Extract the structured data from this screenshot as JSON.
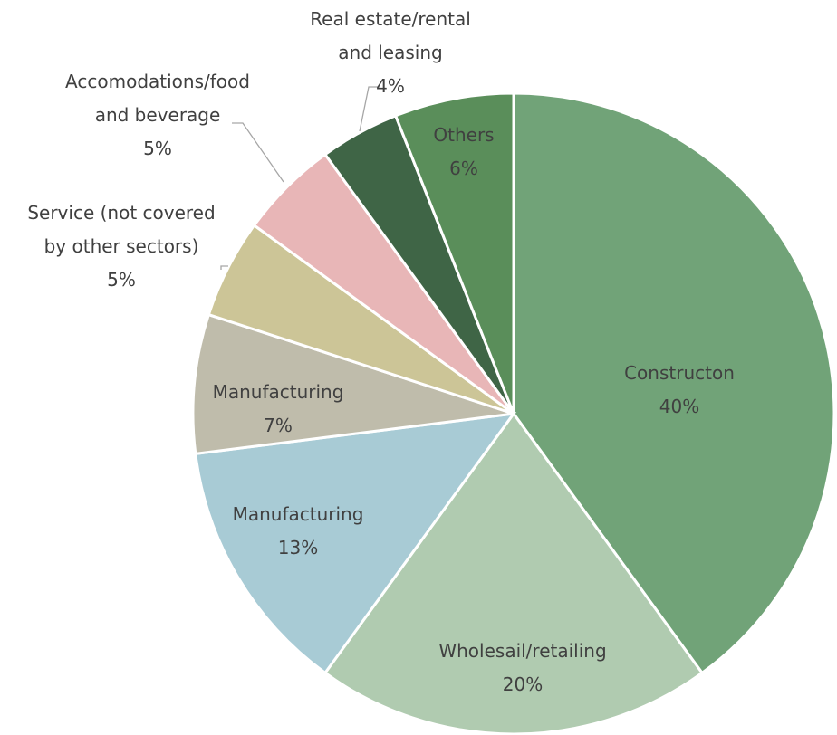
{
  "chart_data": {
    "type": "pie",
    "start_angle_deg": 0,
    "direction": "clockwise",
    "slices": [
      {
        "label_lines": [
          "Constructon"
        ],
        "value": 40,
        "value_label": "40%",
        "color": "#71a378"
      },
      {
        "label_lines": [
          "Wholesail/retailing"
        ],
        "value": 20,
        "value_label": "20%",
        "color": "#b0cbb0"
      },
      {
        "label_lines": [
          "Manufacturing"
        ],
        "value": 13,
        "value_label": "13%",
        "color": "#a8cbd5"
      },
      {
        "label_lines": [
          "Manufacturing"
        ],
        "value": 7,
        "value_label": "7%",
        "color": "#bfbcab"
      },
      {
        "label_lines": [
          "Service (not covered",
          "by other sectors)"
        ],
        "value": 5,
        "value_label": "5%",
        "color": "#ccc597"
      },
      {
        "label_lines": [
          "Accomodations/food",
          "and beverage"
        ],
        "value": 5,
        "value_label": "5%",
        "color": "#e8b6b7"
      },
      {
        "label_lines": [
          "Real estate/rental",
          "and leasing"
        ],
        "value": 4,
        "value_label": "4%",
        "color": "#3f6546"
      },
      {
        "label_lines": [
          "Others"
        ],
        "value": 6,
        "value_label": "6%",
        "color": "#5a8e5a"
      }
    ]
  }
}
